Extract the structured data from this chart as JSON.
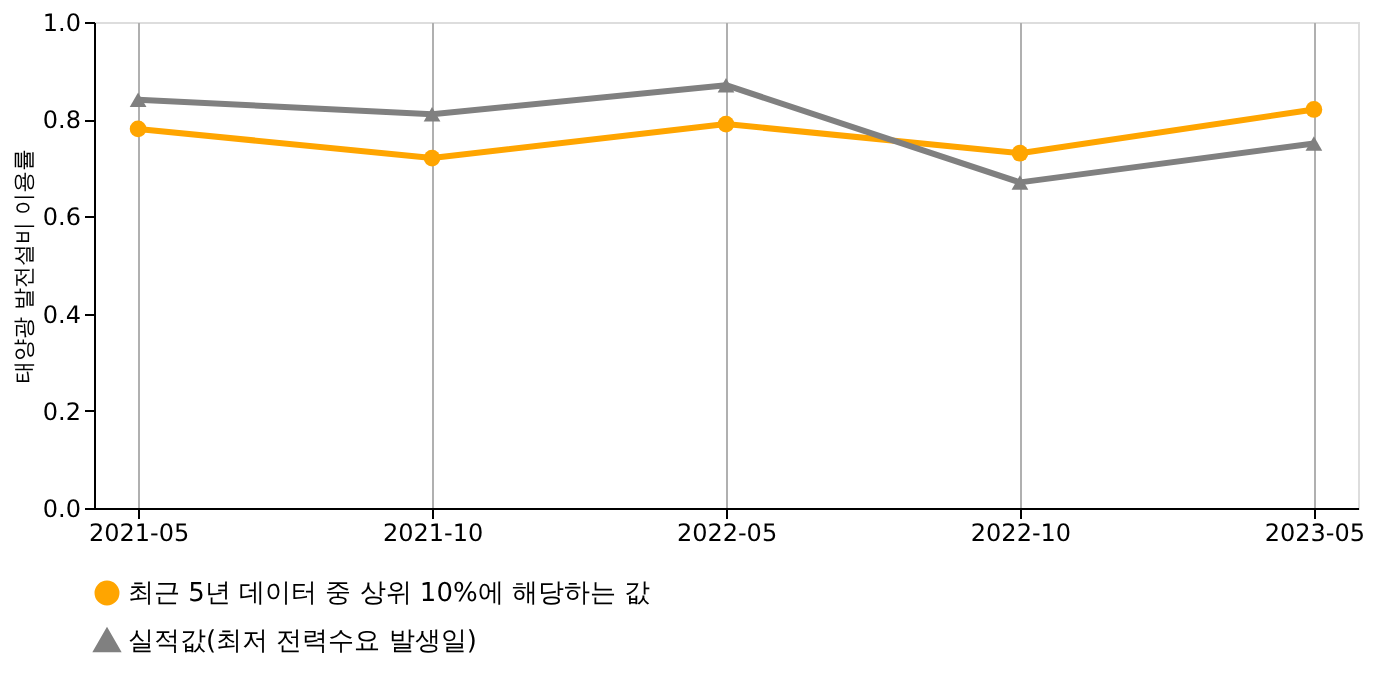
{
  "chart_data": {
    "type": "line",
    "ylabel": "태양광 발전설비 이용률",
    "categories": [
      "2021-05",
      "2021-10",
      "2022-05",
      "2022-10",
      "2023-05"
    ],
    "series": [
      {
        "name": "최근 5년 데이터 중 상위 10%에 해당하는 값",
        "color": "#ffa500",
        "marker": "circle",
        "values": [
          0.78,
          0.72,
          0.79,
          0.73,
          0.82
        ]
      },
      {
        "name": "실적값(최저 전력수요 발생일)",
        "color": "#808080",
        "marker": "triangle",
        "values": [
          0.84,
          0.81,
          0.87,
          0.67,
          0.75
        ]
      }
    ],
    "ylim": [
      0,
      1
    ],
    "yticks": [
      {
        "value": 0,
        "label": "0.0"
      },
      {
        "value": 0.2,
        "label": "0.2"
      },
      {
        "value": 0.4,
        "label": "0.4"
      },
      {
        "value": 0.6,
        "label": "0.6"
      },
      {
        "value": 0.8,
        "label": "0.8"
      },
      {
        "value": 1,
        "label": "1.0"
      }
    ],
    "grid": "x",
    "legend": "bottom",
    "line_style": "solid"
  }
}
